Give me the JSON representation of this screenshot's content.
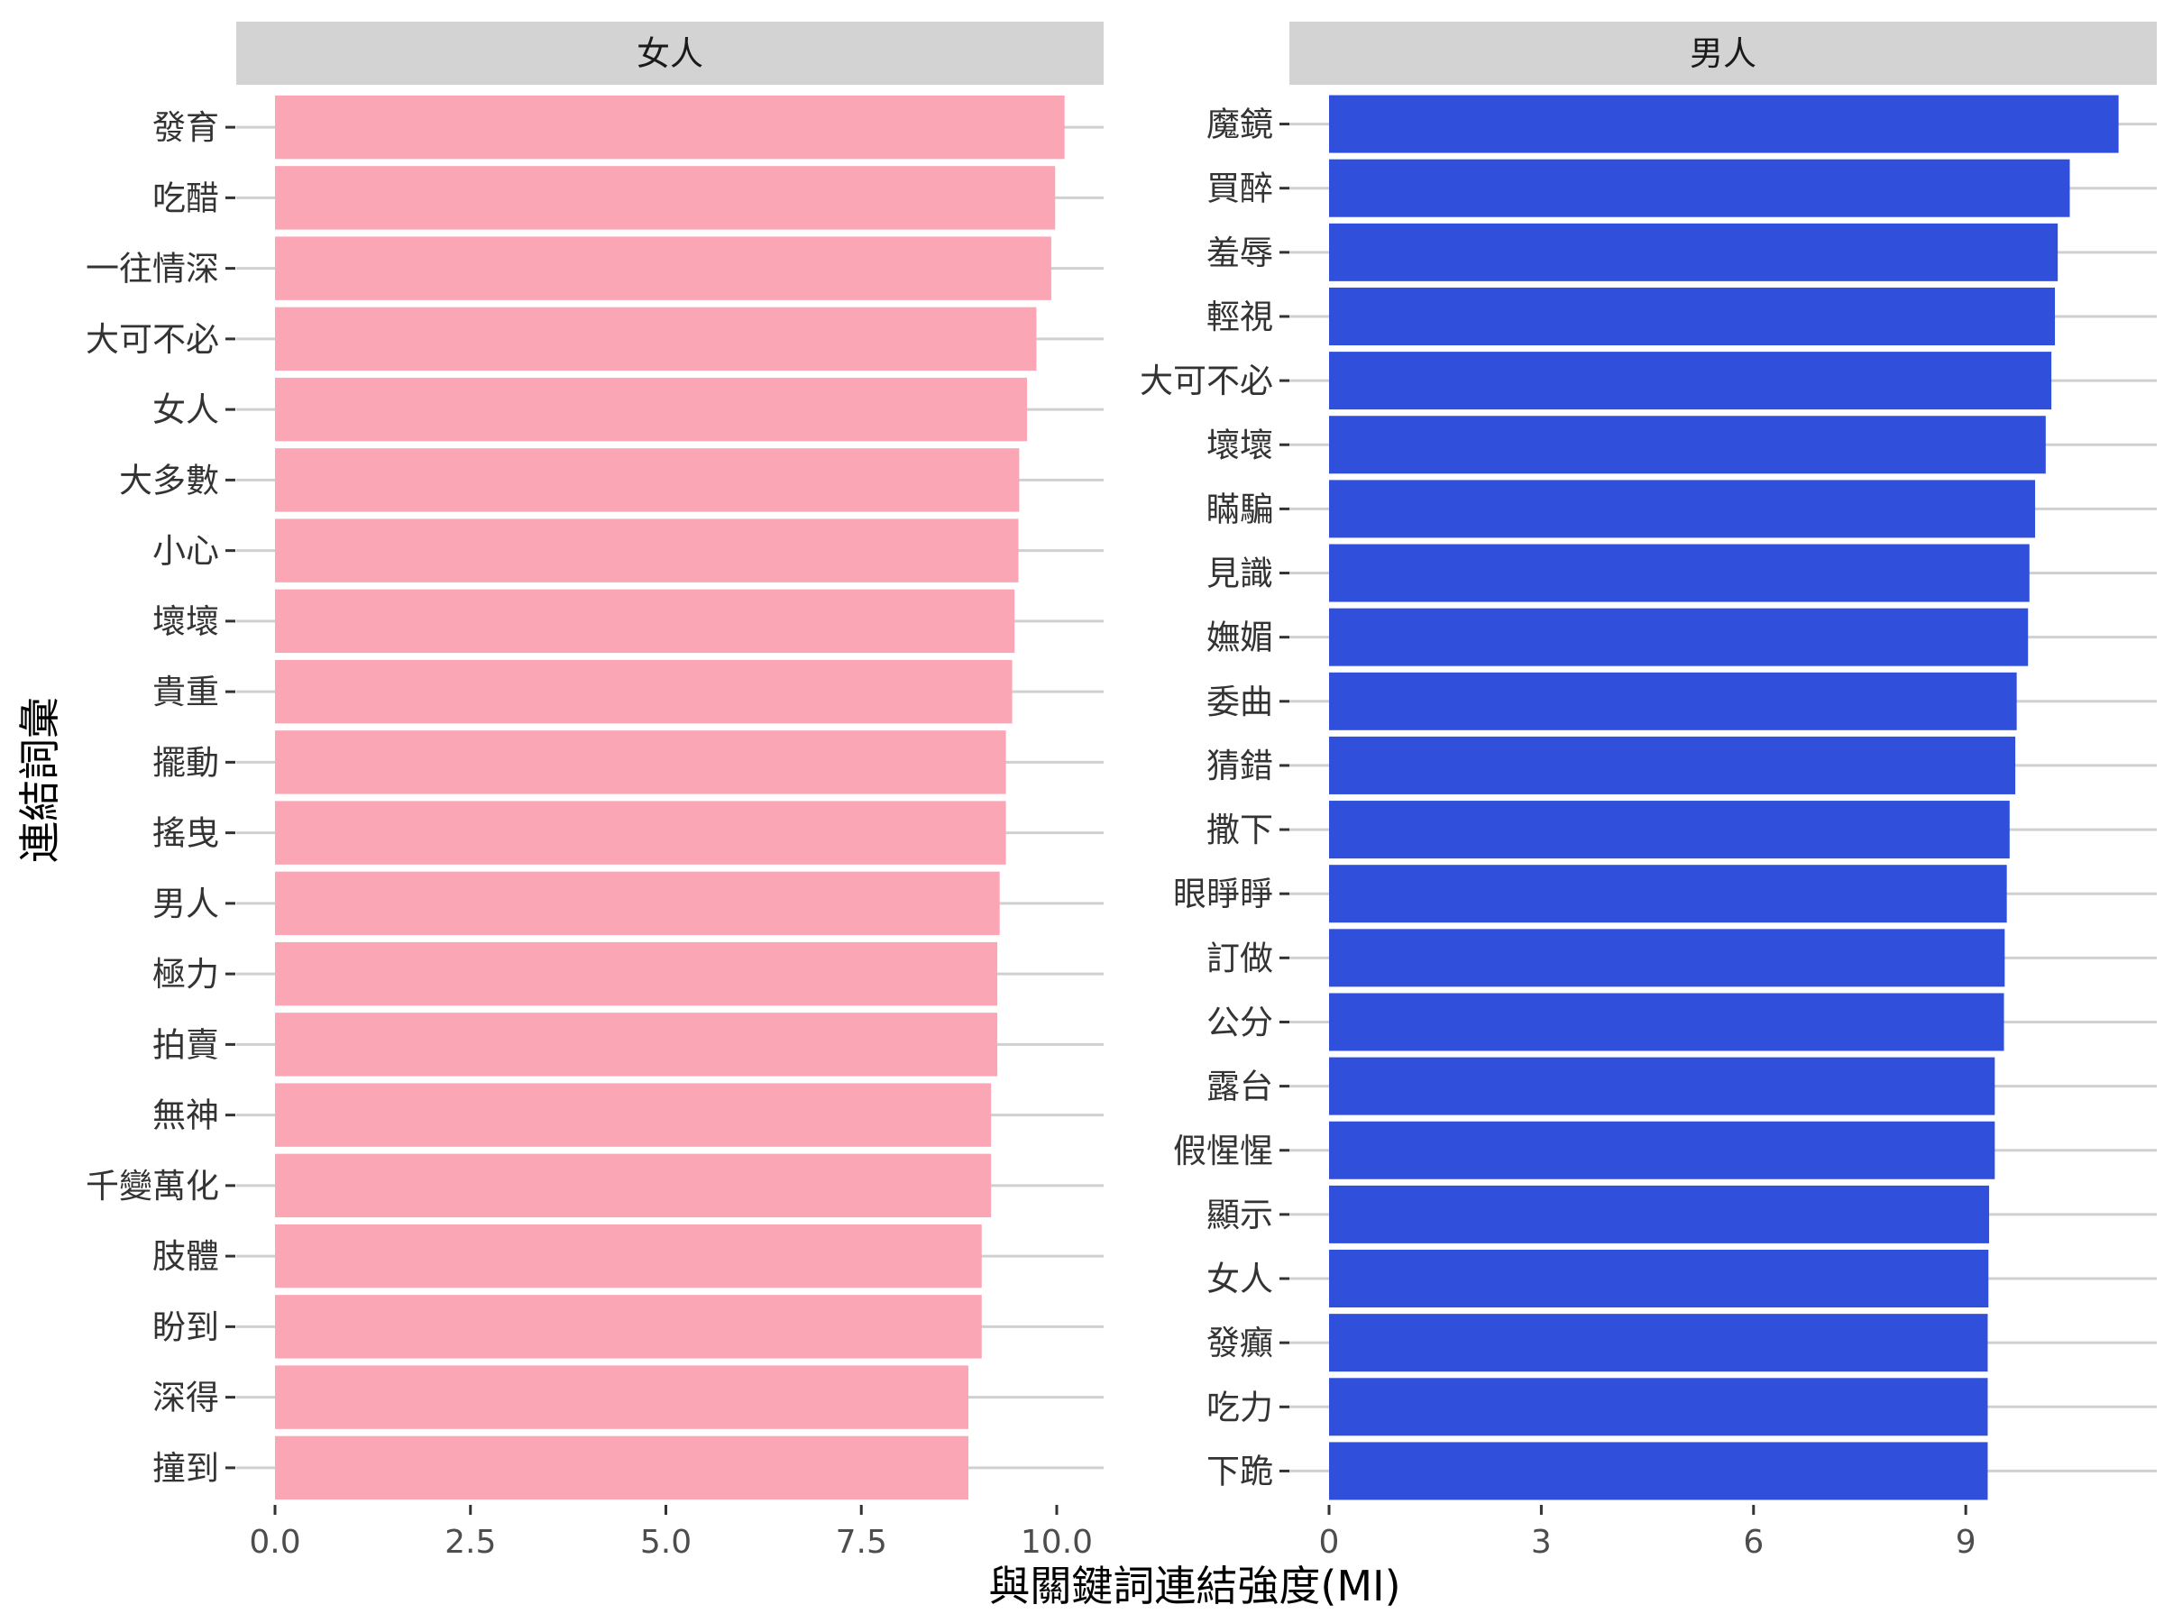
{
  "chart_data": {
    "type": "bar",
    "orientation": "horizontal",
    "xlabel": "與關鍵詞連結強度(MI)",
    "ylabel": "連結詞彙",
    "grid": "horizontal",
    "facets": [
      {
        "title": "女人",
        "color": "#FBA6B4",
        "xlim": [
          0,
          10.6
        ],
        "xticks": [
          0,
          2.5,
          5,
          7.5,
          10
        ],
        "xtick_labels": [
          "0.0",
          "2.5",
          "5.0",
          "7.5",
          "10.0"
        ],
        "categories": [
          "發育",
          "吃醋",
          "一往情深",
          "大可不必",
          "女人",
          "大多數",
          "小心",
          "壞壞",
          "貴重",
          "擺動",
          "搖曳",
          "男人",
          "極力",
          "拍賣",
          "無神",
          "千變萬化",
          "肢體",
          "盼到",
          "深得",
          "撞到"
        ],
        "values": [
          10.1,
          9.98,
          9.93,
          9.74,
          9.62,
          9.52,
          9.51,
          9.46,
          9.43,
          9.35,
          9.35,
          9.27,
          9.24,
          9.24,
          9.16,
          9.16,
          9.04,
          9.04,
          8.87,
          8.87
        ]
      },
      {
        "title": "男人",
        "color": "#3050DC",
        "xlim": [
          0,
          11.7
        ],
        "xticks": [
          0,
          3,
          6,
          9
        ],
        "xtick_labels": [
          "0",
          "3",
          "6",
          "9"
        ],
        "categories": [
          "魔鏡",
          "買醉",
          "羞辱",
          "輕視",
          "大可不必",
          "壞壞",
          "瞞騙",
          "見識",
          "嫵媚",
          "委曲",
          "猜錯",
          "撒下",
          "眼睜睜",
          "訂做",
          "公分",
          "露台",
          "假惺惺",
          "顯示",
          "女人",
          "發癲",
          "吃力",
          "下跪"
        ],
        "values": [
          11.16,
          10.47,
          10.3,
          10.26,
          10.21,
          10.13,
          9.98,
          9.9,
          9.88,
          9.72,
          9.7,
          9.62,
          9.58,
          9.55,
          9.54,
          9.41,
          9.41,
          9.33,
          9.32,
          9.31,
          9.31,
          9.31
        ]
      }
    ]
  }
}
